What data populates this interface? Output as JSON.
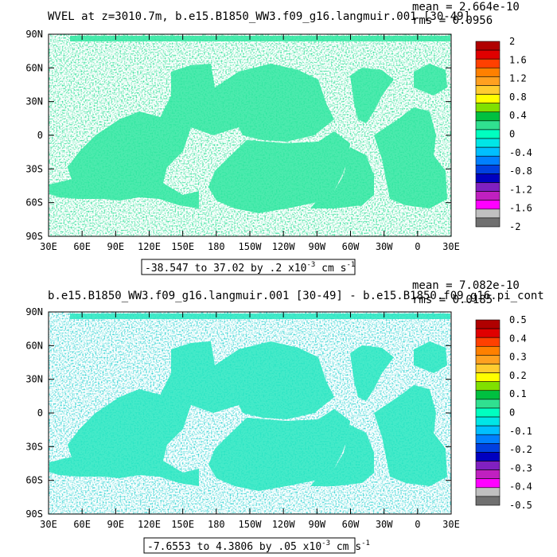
{
  "panels": [
    {
      "title": "WVEL at z=3010.7m, b.e15.B1850_WW3.f09_g16.langmuir.001 [30-49]",
      "stats": {
        "mean": "mean = 2.664e-10",
        "rms": "rms = 0.0956"
      },
      "range_note": {
        "prefix": "-38.547 to 37.02 by .2 x10",
        "exp": "-3",
        "units": " cm s",
        "units_exp": "-1"
      },
      "colorbar": {
        "labels": [
          "2",
          "1.6",
          "1.2",
          "0.8",
          "0.4",
          "0",
          "-0.4",
          "-0.8",
          "-1.2",
          "-1.6",
          "-2"
        ],
        "colors": [
          "#b00000",
          "#e00000",
          "#ff4000",
          "#ff8000",
          "#ffa020",
          "#ffcc30",
          "#ffff00",
          "#80e000",
          "#00c040",
          "#30e090",
          "#00ffc0",
          "#00e6e6",
          "#00bfff",
          "#0080ff",
          "#0040e0",
          "#0000c0",
          "#8020c0",
          "#c020c0",
          "#ff00ff",
          "#c0c0c0",
          "#707070"
        ]
      }
    },
    {
      "title": "b.e15.B1850_WW3.f09_g16.langmuir.001 [30-49] - b.e15.B1850.f09_g16.pi_cont",
      "stats": {
        "mean": "mean = 7.082e-10",
        "rms": "rms = 0.0185"
      },
      "range_note": {
        "prefix": "-7.6553 to 4.3806 by .05 x10",
        "exp": "-3",
        "units": " cm s",
        "units_exp": "-1"
      },
      "colorbar": {
        "labels": [
          "0.5",
          "0.4",
          "0.3",
          "0.2",
          "0.1",
          "0",
          "-0.1",
          "-0.2",
          "-0.3",
          "-0.4",
          "-0.5"
        ],
        "colors": [
          "#b00000",
          "#e00000",
          "#ff4000",
          "#ff8000",
          "#ffa020",
          "#ffcc30",
          "#ffff00",
          "#80e000",
          "#00c040",
          "#30e090",
          "#00ffc0",
          "#00e6e6",
          "#00bfff",
          "#0080ff",
          "#0040e0",
          "#0000c0",
          "#8020c0",
          "#c020c0",
          "#ff00ff",
          "#c0c0c0",
          "#707070"
        ]
      }
    }
  ],
  "chart_data": [
    {
      "type": "heatmap",
      "title": "WVEL at z=3010.7m, b.e15.B1850_WW3.f09_g16.langmuir.001 [30-49]",
      "x_ticks": [
        "30E",
        "60E",
        "90E",
        "120E",
        "150E",
        "180",
        "150W",
        "120W",
        "90W",
        "60W",
        "30W",
        "0",
        "30E"
      ],
      "y_ticks": [
        "90N",
        "60N",
        "30N",
        "0",
        "30S",
        "60S",
        "90S"
      ],
      "xlim": [
        30,
        390
      ],
      "ylim": [
        -90,
        90
      ],
      "colorbar_range": [
        -2,
        2
      ],
      "mean": 2.664e-10,
      "rms": 0.0956,
      "data_min": -38.547,
      "data_max": 37.02,
      "contour_interval": 0.2,
      "units": "x10^-3 cm s^-1"
    },
    {
      "type": "heatmap",
      "title": "b.e15.B1850_WW3.f09_g16.langmuir.001 [30-49] - b.e15.B1850.f09_g16.pi_cont",
      "x_ticks": [
        "30E",
        "60E",
        "90E",
        "120E",
        "150E",
        "180",
        "150W",
        "120W",
        "90W",
        "60W",
        "30W",
        "0",
        "30E"
      ],
      "y_ticks": [
        "90N",
        "60N",
        "30N",
        "0",
        "30S",
        "60S",
        "90S"
      ],
      "xlim": [
        30,
        390
      ],
      "ylim": [
        -90,
        90
      ],
      "colorbar_range": [
        -0.5,
        0.5
      ],
      "mean": 7.082e-10,
      "rms": 0.0185,
      "data_min": -7.6553,
      "data_max": 4.3806,
      "contour_interval": 0.05,
      "units": "x10^-3 cm s^-1"
    }
  ]
}
